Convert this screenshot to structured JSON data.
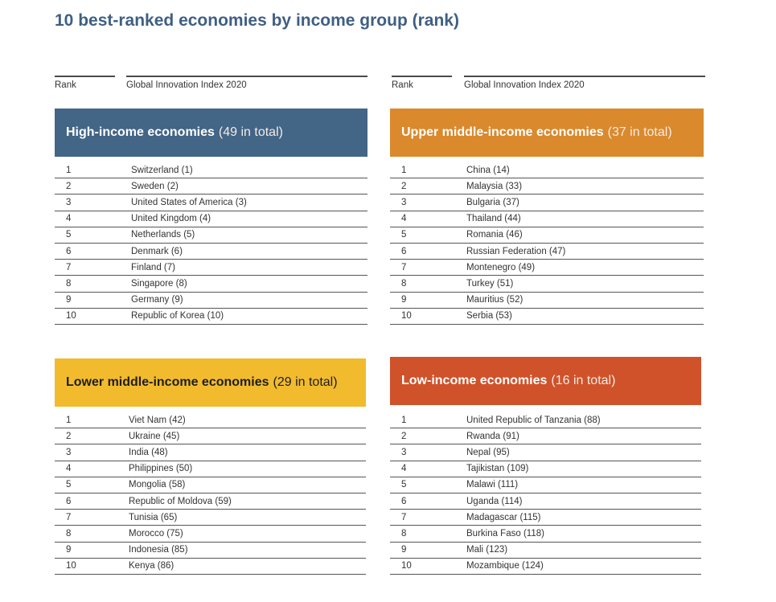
{
  "title": "10 best-ranked economies by income group (rank)",
  "column_headers": {
    "rank": "Rank",
    "index": "Global Innovation Index 2020"
  },
  "colors": {
    "title": "#3f5f84",
    "high": "#436586",
    "upper_middle": "#da892c",
    "lower_middle": "#f2bb2e",
    "low": "#d0522a"
  },
  "groups": {
    "high": {
      "name": "High-income economies",
      "total": "(49 in total)",
      "rows": [
        {
          "rank": "1",
          "economy": "Switzerland (1)"
        },
        {
          "rank": "2",
          "economy": "Sweden (2)"
        },
        {
          "rank": "3",
          "economy": "United States of America (3)"
        },
        {
          "rank": "4",
          "economy": "United Kingdom (4)"
        },
        {
          "rank": "5",
          "economy": "Netherlands (5)"
        },
        {
          "rank": "6",
          "economy": "Denmark (6)"
        },
        {
          "rank": "7",
          "economy": "Finland (7)"
        },
        {
          "rank": "8",
          "economy": "Singapore (8)"
        },
        {
          "rank": "9",
          "economy": "Germany (9)"
        },
        {
          "rank": "10",
          "economy": "Republic of Korea (10)"
        }
      ]
    },
    "upper_middle": {
      "name": "Upper middle-income economies",
      "total": "(37 in total)",
      "rows": [
        {
          "rank": "1",
          "economy": "China (14)"
        },
        {
          "rank": "2",
          "economy": "Malaysia (33)"
        },
        {
          "rank": "3",
          "economy": "Bulgaria (37)"
        },
        {
          "rank": "4",
          "economy": "Thailand (44)"
        },
        {
          "rank": "5",
          "economy": "Romania (46)"
        },
        {
          "rank": "6",
          "economy": "Russian Federation (47)"
        },
        {
          "rank": "7",
          "economy": "Montenegro (49)"
        },
        {
          "rank": "8",
          "economy": "Turkey (51)"
        },
        {
          "rank": "9",
          "economy": "Mauritius (52)"
        },
        {
          "rank": "10",
          "economy": "Serbia (53)"
        }
      ]
    },
    "lower_middle": {
      "name": "Lower middle-income economies",
      "total": "(29 in total)",
      "rows": [
        {
          "rank": "1",
          "economy": "Viet Nam (42)"
        },
        {
          "rank": "2",
          "economy": "Ukraine (45)"
        },
        {
          "rank": "3",
          "economy": "India (48)"
        },
        {
          "rank": "4",
          "economy": "Philippines (50)"
        },
        {
          "rank": "5",
          "economy": "Mongolia (58)"
        },
        {
          "rank": "6",
          "economy": "Republic of Moldova (59)"
        },
        {
          "rank": "7",
          "economy": "Tunisia (65)"
        },
        {
          "rank": "8",
          "economy": "Morocco (75)"
        },
        {
          "rank": "9",
          "economy": "Indonesia (85)"
        },
        {
          "rank": "10",
          "economy": "Kenya (86)"
        }
      ]
    },
    "low": {
      "name": "Low-income economies",
      "total": "(16 in total)",
      "rows": [
        {
          "rank": "1",
          "economy": "United Republic of Tanzania (88)"
        },
        {
          "rank": "2",
          "economy": "Rwanda (91)"
        },
        {
          "rank": "3",
          "economy": "Nepal (95)"
        },
        {
          "rank": "4",
          "economy": "Tajikistan (109)"
        },
        {
          "rank": "5",
          "economy": "Malawi (111)"
        },
        {
          "rank": "6",
          "economy": "Uganda (114)"
        },
        {
          "rank": "7",
          "economy": "Madagascar (115)"
        },
        {
          "rank": "8",
          "economy": "Burkina Faso (118)"
        },
        {
          "rank": "9",
          "economy": "Mali (123)"
        },
        {
          "rank": "10",
          "economy": "Mozambique (124)"
        }
      ]
    }
  }
}
